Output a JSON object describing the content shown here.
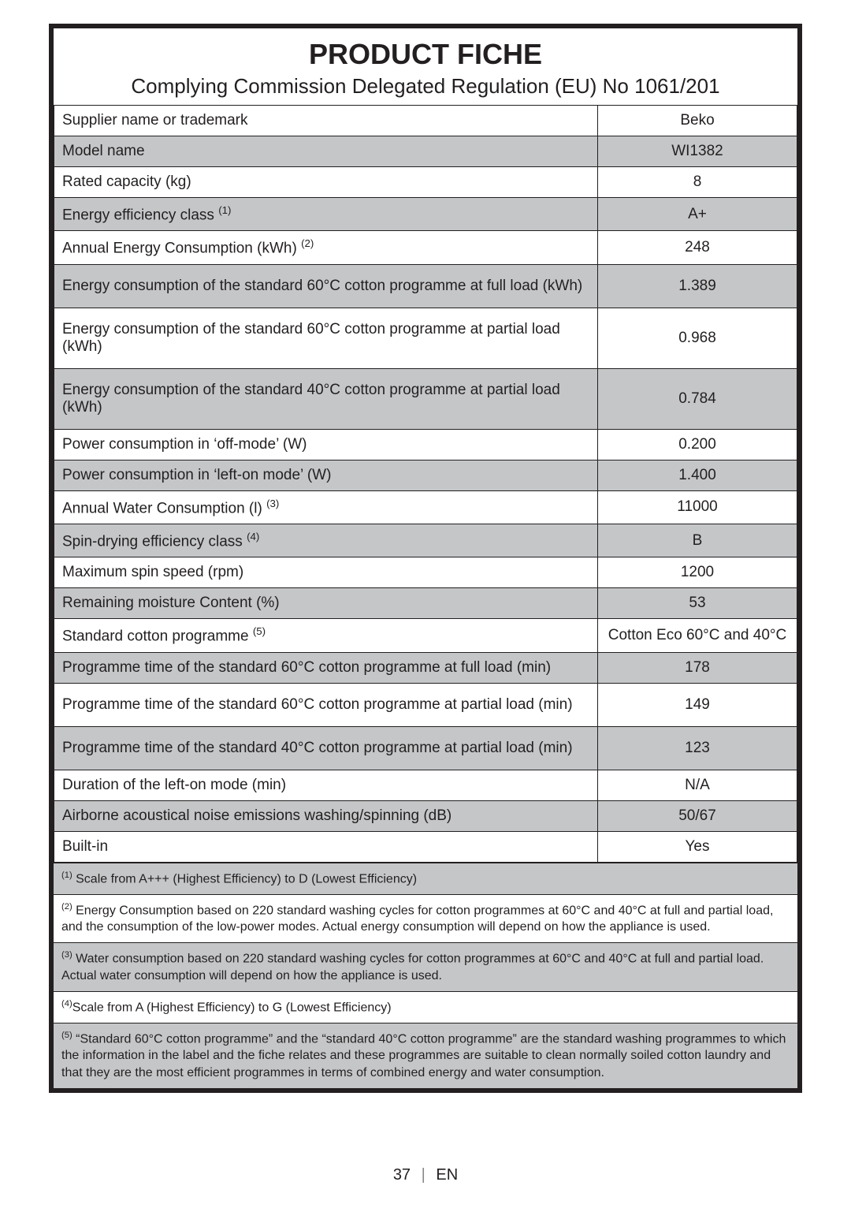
{
  "header": {
    "title": "PRODUCT FICHE",
    "subtitle": "Complying Commission Delegated Regulation (EU) No 1061/201"
  },
  "rows": [
    {
      "label": "Supplier name or trademark",
      "value": "Beko",
      "alt": false,
      "height": ""
    },
    {
      "label": "Model name",
      "value": "WI1382",
      "alt": true,
      "height": ""
    },
    {
      "label": "Rated capacity (kg)",
      "value": "8",
      "alt": false,
      "height": ""
    },
    {
      "label_html": "Energy efficiency class <sup>(1)</sup>",
      "value": "A+",
      "alt": true,
      "height": ""
    },
    {
      "label_html": "Annual Energy Consumption (kWh) <sup>(2)</sup>",
      "value": "248",
      "alt": false,
      "height": ""
    },
    {
      "label": "Energy consumption of the standard 60°C cotton programme at full load (kWh)",
      "value": "1.389",
      "alt": true,
      "height": "tall"
    },
    {
      "label": "Energy consumption of the standard 60°C cotton programme at partial load (kWh)",
      "value": "0.968",
      "alt": false,
      "height": "tall"
    },
    {
      "label": "Energy consumption of the standard 40°C cotton programme at partial load (kWh)",
      "value": "0.784",
      "alt": true,
      "height": "tall"
    },
    {
      "label": "Power consumption in ‘off-mode’ (W)",
      "value": "0.200",
      "alt": false,
      "height": ""
    },
    {
      "label": "Power consumption in ‘left-on mode’ (W)",
      "value": "1.400",
      "alt": true,
      "height": ""
    },
    {
      "label_html": "Annual Water Consumption (l) <sup>(3)</sup>",
      "value": "11000",
      "alt": false,
      "height": ""
    },
    {
      "label_html": "Spin-drying efficiency class <sup>(4)</sup>",
      "value": "B",
      "alt": true,
      "height": ""
    },
    {
      "label": "Maximum spin speed (rpm)",
      "value": "1200",
      "alt": false,
      "height": ""
    },
    {
      "label": "Remaining moisture Content (%)",
      "value": "53",
      "alt": true,
      "height": ""
    },
    {
      "label_html": "Standard cotton programme <sup>(5)</sup>",
      "value": "Cotton Eco 60°C and 40°C",
      "alt": false,
      "height": ""
    },
    {
      "label": "Programme time of the standard 60°C cotton programme at full load (min)",
      "value": "178",
      "alt": true,
      "height": ""
    },
    {
      "label": "Programme time of the standard 60°C cotton programme at partial load (min)",
      "value": "149",
      "alt": false,
      "height": "tall"
    },
    {
      "label": "Programme time of the standard 40°C cotton programme at partial load (min)",
      "value": "123",
      "alt": true,
      "height": "tall"
    },
    {
      "label": "Duration of the left-on mode (min)",
      "value": "N/A",
      "alt": false,
      "height": ""
    },
    {
      "label": "Airborne acoustical noise emissions washing/spinning (dB)",
      "value": "50/67",
      "alt": true,
      "height": ""
    },
    {
      "label": "Built-in",
      "value": "Yes",
      "alt": false,
      "height": ""
    }
  ],
  "footnotes": [
    {
      "html": "<sup>(1)</sup> Scale from A+++ (Highest Efficiency) to D (Lowest Efficiency)",
      "alt": true
    },
    {
      "html": "<sup>(2)</sup> Energy Consumption based on 220 standard washing cycles for cotton programmes at 60°C and 40°C at full and partial load, and the consumption of the low-power modes. Actual energy consumption will depend on how the appliance is used.",
      "alt": false
    },
    {
      "html": "<sup>(3)</sup> Water consumption based on 220 standard washing cycles for cotton programmes at 60°C and 40°C at full and partial load. Actual water consumption will depend on how the appliance is used.",
      "alt": true
    },
    {
      "html": "<sup>(4)</sup>Scale from A (Highest Efficiency) to G (Lowest Efficiency)",
      "alt": false
    },
    {
      "html": "<sup>(5)</sup> “Standard 60°C cotton programme” and the “standard 40°C cotton programme” are the standard washing programmes to which the information in the label and the fiche relates and these programmes are suitable to clean normally soiled cotton laundry and that they are the most efficient programmes in terms of combined energy and water consumption.",
      "alt": true
    }
  ],
  "footer": {
    "page": "37",
    "lang": "EN"
  }
}
